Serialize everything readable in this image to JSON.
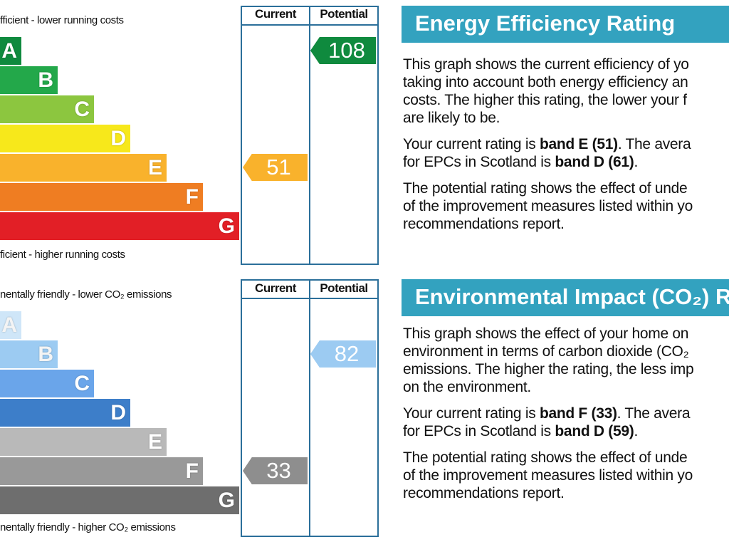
{
  "energy_chart": {
    "headers": {
      "current": "Current",
      "potential": "Potential"
    },
    "top_caption": "fficient - lower running costs",
    "bottom_caption": "ficient - higher running costs",
    "bands": [
      {
        "letter": "A",
        "color": "#0f8a3e"
      },
      {
        "letter": "B",
        "color": "#23a84a"
      },
      {
        "letter": "C",
        "color": "#8cc63f"
      },
      {
        "letter": "D",
        "color": "#f7e81b"
      },
      {
        "letter": "E",
        "color": "#f9b22c"
      },
      {
        "letter": "F",
        "color": "#ef7d22"
      },
      {
        "letter": "G",
        "color": "#e21f26"
      }
    ],
    "current": {
      "value": "51",
      "band": "E",
      "color": "#f9b22c"
    },
    "potential": {
      "value": "108",
      "band": "A",
      "color": "#0f8a3e"
    }
  },
  "impact_chart": {
    "headers": {
      "current": "Current",
      "potential": "Potential"
    },
    "top_caption": "nentally friendly - lower CO₂ emissions",
    "bottom_caption": "nentally friendly - higher CO₂ emissions",
    "bands": [
      {
        "letter": "A",
        "color": "#cfe6f8"
      },
      {
        "letter": "B",
        "color": "#9ccbf2"
      },
      {
        "letter": "C",
        "color": "#6aa5ea"
      },
      {
        "letter": "D",
        "color": "#3d7ec9"
      },
      {
        "letter": "E",
        "color": "#b9b9b9"
      },
      {
        "letter": "F",
        "color": "#999999"
      },
      {
        "letter": "G",
        "color": "#6e6e6e"
      }
    ],
    "current": {
      "value": "33",
      "band": "F",
      "color": "#8e8e8e"
    },
    "potential": {
      "value": "82",
      "band": "B",
      "color": "#9ccbf2"
    }
  },
  "energy_panel": {
    "title": "Energy Efficiency Rating",
    "p1_lines": [
      "This graph shows the current efficiency of yo",
      "taking into account both energy efficiency an",
      "costs. The higher this rating, the lower your f",
      "are likely to be."
    ],
    "p2_line1_pre": "Your current rating is ",
    "p2_line1_bold": "band E (51)",
    "p2_line1_post": ". The avera",
    "p2_line2_pre": "for EPCs in Scotland is ",
    "p2_line2_bold": "band D (61)",
    "p2_line2_post": ".",
    "p3_lines": [
      "The potential rating shows the effect of unde",
      "of the improvement measures listed within yo",
      "recommendations report."
    ]
  },
  "impact_panel": {
    "title": "Environmental Impact (CO₂) R",
    "p1_lines": [
      "This graph shows the effect of your home on",
      "environment in terms of carbon dioxide (CO₂",
      "emissions. The higher the rating, the less imp",
      "on the environment."
    ],
    "p2_line1_pre": "Your current rating is ",
    "p2_line1_bold": "band F (33)",
    "p2_line1_post": ". The avera",
    "p2_line2_pre": "for EPCs in Scotland is ",
    "p2_line2_bold": "band D (59)",
    "p2_line2_post": ".",
    "p3_lines": [
      "The potential rating shows the effect of unde",
      "of the improvement measures listed within yo",
      "recommendations report."
    ]
  }
}
